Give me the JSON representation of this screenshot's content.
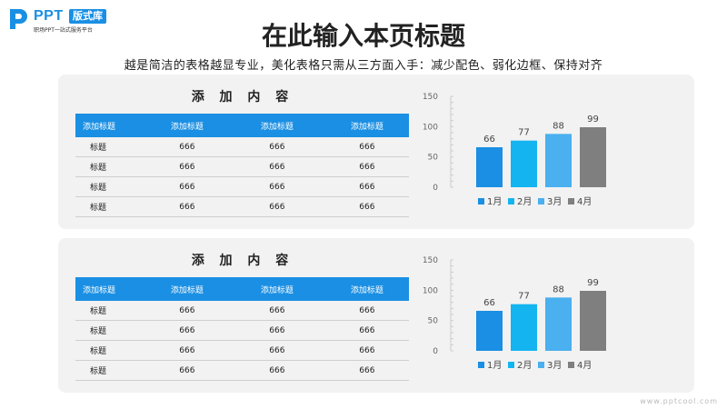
{
  "logo": {
    "brand": "PPT",
    "badge": "版式库",
    "tagline": "职场PPT一站式服务平台"
  },
  "title": "在此输入本页标题",
  "subtitle": "越是简洁的表格越显专业，美化表格只需从三方面入手：减少配色、弱化边框、保持对齐",
  "panels": [
    {
      "section_title": "添 加 内 容",
      "table": {
        "headers": [
          "添加标题",
          "添加标题",
          "添加标题",
          "添加标题"
        ],
        "rows": [
          [
            "标题",
            "666",
            "666",
            "666"
          ],
          [
            "标题",
            "666",
            "666",
            "666"
          ],
          [
            "标题",
            "666",
            "666",
            "666"
          ],
          [
            "标题",
            "666",
            "666",
            "666"
          ]
        ]
      }
    },
    {
      "section_title": "添 加 内 容",
      "table": {
        "headers": [
          "添加标题",
          "添加标题",
          "添加标题",
          "添加标题"
        ],
        "rows": [
          [
            "标题",
            "666",
            "666",
            "666"
          ],
          [
            "标题",
            "666",
            "666",
            "666"
          ],
          [
            "标题",
            "666",
            "666",
            "666"
          ],
          [
            "标题",
            "666",
            "666",
            "666"
          ]
        ]
      }
    }
  ],
  "chart_data": [
    {
      "type": "bar",
      "categories": [
        "1月",
        "2月",
        "3月",
        "4月"
      ],
      "values": [
        66,
        77,
        88,
        99
      ],
      "colors": [
        "#1a8fe3",
        "#14b4f0",
        "#4ab0f0",
        "#7f7f7f"
      ],
      "yticks": [
        0,
        50,
        100,
        150
      ],
      "ylim": [
        0,
        150
      ],
      "grid": false,
      "legend": "bottom"
    },
    {
      "type": "bar",
      "categories": [
        "1月",
        "2月",
        "3月",
        "4月"
      ],
      "values": [
        66,
        77,
        88,
        99
      ],
      "colors": [
        "#1a8fe3",
        "#14b4f0",
        "#4ab0f0",
        "#7f7f7f"
      ],
      "yticks": [
        0,
        50,
        100,
        150
      ],
      "ylim": [
        0,
        150
      ],
      "grid": false,
      "legend": "bottom"
    }
  ],
  "watermark": "www.pptcool.com"
}
